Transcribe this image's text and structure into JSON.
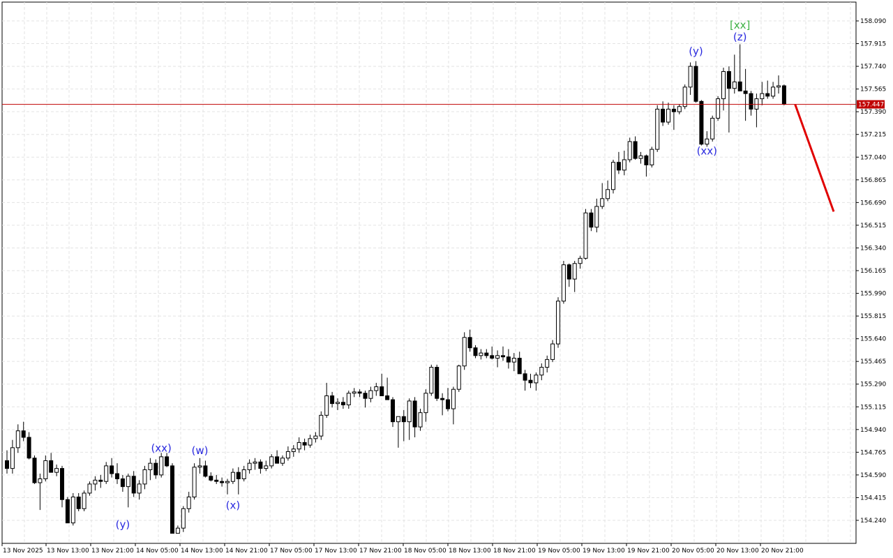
{
  "chart_data": {
    "type": "candlestick",
    "title": "",
    "grid": true,
    "ylim": [
      154.14,
      158.14
    ],
    "y_ticks": [
      "158.090",
      "157.915",
      "157.740",
      "157.565",
      "157.390",
      "157.215",
      "157.040",
      "156.865",
      "156.690",
      "156.515",
      "156.340",
      "156.165",
      "155.990",
      "155.815",
      "155.640",
      "155.465",
      "155.290",
      "155.115",
      "154.940",
      "154.765",
      "154.590",
      "154.415",
      "154.240"
    ],
    "x_ticks": [
      "13 Nov 2025",
      "13 Nov 13:00",
      "13 Nov 21:00",
      "14 Nov 05:00",
      "14 Nov 13:00",
      "14 Nov 21:00",
      "17 Nov 05:00",
      "17 Nov 13:00",
      "17 Nov 21:00",
      "18 Nov 05:00",
      "18 Nov 13:00",
      "18 Nov 21:00",
      "19 Nov 05:00",
      "19 Nov 13:00",
      "19 Nov 21:00",
      "20 Nov 05:00",
      "20 Nov 13:00",
      "20 Nov 21:00"
    ],
    "current_price": "157.447",
    "colors": {
      "bull_fill": "#ffffff",
      "bear_fill": "#000000",
      "price_line": "#c00000",
      "forecast": "#e00000",
      "wave_label": "#2a2adf",
      "major_label": "#3cb043",
      "grid": "#e3e3e3"
    },
    "candles": [
      [
        154.7,
        154.78,
        154.6,
        154.64
      ],
      [
        154.64,
        154.86,
        154.6,
        154.8
      ],
      [
        154.8,
        154.98,
        154.76,
        154.93
      ],
      [
        154.93,
        155.0,
        154.85,
        154.88
      ],
      [
        154.88,
        154.92,
        154.71,
        154.72
      ],
      [
        154.72,
        154.74,
        154.52,
        154.53
      ],
      [
        154.53,
        154.6,
        154.32,
        154.56
      ],
      [
        154.56,
        154.74,
        154.54,
        154.7
      ],
      [
        154.7,
        154.76,
        154.65,
        154.61
      ],
      [
        154.61,
        154.67,
        154.58,
        154.64
      ],
      [
        154.64,
        154.66,
        154.34,
        154.4
      ],
      [
        154.4,
        154.42,
        154.22,
        154.22
      ],
      [
        154.22,
        154.45,
        154.2,
        154.42
      ],
      [
        154.42,
        154.45,
        154.31,
        154.33
      ],
      [
        154.33,
        154.47,
        154.31,
        154.45
      ],
      [
        154.45,
        154.54,
        154.43,
        154.52
      ],
      [
        154.52,
        154.58,
        154.47,
        154.55
      ],
      [
        154.55,
        154.59,
        154.49,
        154.54
      ],
      [
        154.54,
        154.69,
        154.52,
        154.66
      ],
      [
        154.66,
        154.72,
        154.57,
        154.6
      ],
      [
        154.6,
        154.68,
        154.52,
        154.56
      ],
      [
        154.56,
        154.59,
        154.46,
        154.5
      ],
      [
        154.5,
        154.6,
        154.34,
        154.58
      ],
      [
        154.58,
        154.62,
        154.42,
        154.45
      ],
      [
        154.45,
        154.55,
        154.4,
        154.52
      ],
      [
        154.52,
        154.66,
        154.48,
        154.63
      ],
      [
        154.63,
        154.72,
        154.55,
        154.68
      ],
      [
        154.68,
        154.71,
        154.56,
        154.59
      ],
      [
        154.59,
        154.76,
        154.57,
        154.73
      ],
      [
        154.73,
        154.76,
        154.65,
        154.66
      ],
      [
        154.66,
        154.68,
        154.14,
        154.14
      ],
      [
        154.14,
        154.2,
        154.14,
        154.18
      ],
      [
        154.18,
        154.35,
        154.15,
        154.33
      ],
      [
        154.33,
        154.46,
        154.3,
        154.42
      ],
      [
        154.42,
        154.68,
        154.4,
        154.65
      ],
      [
        154.65,
        154.72,
        154.6,
        154.66
      ],
      [
        154.66,
        154.7,
        154.57,
        154.58
      ],
      [
        154.58,
        154.61,
        154.54,
        154.55
      ],
      [
        154.55,
        154.59,
        154.52,
        154.54
      ],
      [
        154.54,
        154.57,
        154.5,
        154.53
      ],
      [
        154.53,
        154.56,
        154.44,
        154.54
      ],
      [
        154.54,
        154.64,
        154.52,
        154.61
      ],
      [
        154.61,
        154.65,
        154.44,
        154.56
      ],
      [
        154.56,
        154.66,
        154.54,
        154.63
      ],
      [
        154.63,
        154.71,
        154.6,
        154.68
      ],
      [
        154.68,
        154.72,
        154.63,
        154.69
      ],
      [
        154.69,
        154.71,
        154.6,
        154.64
      ],
      [
        154.64,
        154.7,
        154.62,
        154.66
      ],
      [
        154.66,
        154.75,
        154.64,
        154.73
      ],
      [
        154.73,
        154.78,
        154.7,
        154.68
      ],
      [
        154.68,
        154.74,
        154.66,
        154.72
      ],
      [
        154.72,
        154.81,
        154.7,
        154.77
      ],
      [
        154.77,
        154.82,
        154.73,
        154.79
      ],
      [
        154.79,
        154.88,
        154.76,
        154.84
      ],
      [
        154.84,
        154.87,
        154.78,
        154.82
      ],
      [
        154.82,
        154.9,
        154.8,
        154.87
      ],
      [
        154.87,
        154.92,
        154.84,
        154.89
      ],
      [
        154.89,
        155.08,
        154.86,
        155.05
      ],
      [
        155.05,
        155.3,
        155.03,
        155.2
      ],
      [
        155.2,
        155.23,
        155.11,
        155.14
      ],
      [
        155.14,
        155.18,
        155.09,
        155.15
      ],
      [
        155.15,
        155.19,
        155.1,
        155.13
      ],
      [
        155.13,
        155.24,
        155.1,
        155.22
      ],
      [
        155.22,
        155.26,
        155.19,
        155.23
      ],
      [
        155.23,
        155.25,
        155.19,
        155.22
      ],
      [
        155.22,
        155.24,
        155.11,
        155.18
      ],
      [
        155.18,
        155.27,
        155.15,
        155.24
      ],
      [
        155.24,
        155.3,
        155.2,
        155.27
      ],
      [
        155.27,
        155.37,
        155.22,
        155.2
      ],
      [
        155.2,
        155.34,
        155.17,
        155.17
      ],
      [
        155.17,
        155.19,
        154.96,
        155.0
      ],
      [
        155.0,
        155.02,
        154.8,
        155.04
      ],
      [
        155.04,
        155.09,
        154.85,
        155.0
      ],
      [
        155.0,
        155.18,
        154.86,
        155.16
      ],
      [
        155.16,
        155.19,
        154.88,
        154.96
      ],
      [
        154.96,
        155.1,
        154.93,
        155.07
      ],
      [
        155.07,
        155.25,
        155.0,
        155.22
      ],
      [
        155.22,
        155.44,
        155.2,
        155.42
      ],
      [
        155.42,
        155.44,
        155.16,
        155.18
      ],
      [
        155.18,
        155.22,
        155.05,
        155.17
      ],
      [
        155.17,
        155.26,
        155.08,
        155.1
      ],
      [
        155.1,
        155.27,
        154.98,
        155.25
      ],
      [
        155.25,
        155.44,
        155.23,
        155.43
      ],
      [
        155.43,
        155.69,
        155.4,
        155.65
      ],
      [
        155.65,
        155.71,
        155.54,
        155.57
      ],
      [
        155.57,
        155.59,
        155.49,
        155.51
      ],
      [
        155.51,
        155.56,
        155.48,
        155.53
      ],
      [
        155.53,
        155.56,
        155.49,
        155.51
      ],
      [
        155.51,
        155.58,
        155.48,
        155.49
      ],
      [
        155.49,
        155.55,
        155.42,
        155.51
      ],
      [
        155.51,
        155.58,
        155.47,
        155.5
      ],
      [
        155.5,
        155.56,
        155.41,
        155.46
      ],
      [
        155.46,
        155.53,
        155.39,
        155.49
      ],
      [
        155.49,
        155.54,
        155.37,
        155.37
      ],
      [
        155.37,
        155.4,
        155.24,
        155.32
      ],
      [
        155.32,
        155.37,
        155.26,
        155.3
      ],
      [
        155.3,
        155.38,
        155.24,
        155.36
      ],
      [
        155.36,
        155.45,
        155.32,
        155.42
      ],
      [
        155.42,
        155.51,
        155.38,
        155.48
      ],
      [
        155.48,
        155.63,
        155.46,
        155.6
      ],
      [
        155.6,
        155.96,
        155.57,
        155.93
      ],
      [
        155.93,
        156.24,
        155.91,
        156.21
      ],
      [
        156.21,
        156.22,
        156.04,
        156.1
      ],
      [
        156.1,
        156.24,
        156.0,
        156.22
      ],
      [
        156.22,
        156.28,
        156.18,
        156.26
      ],
      [
        156.26,
        156.64,
        156.25,
        156.61
      ],
      [
        156.61,
        156.64,
        156.47,
        156.5
      ],
      [
        156.5,
        156.72,
        156.46,
        156.66
      ],
      [
        156.66,
        156.84,
        156.64,
        156.72
      ],
      [
        156.72,
        156.86,
        156.7,
        156.79
      ],
      [
        156.79,
        157.02,
        156.76,
        157.0
      ],
      [
        157.0,
        157.08,
        156.91,
        156.94
      ],
      [
        156.94,
        157.09,
        156.9,
        157.02
      ],
      [
        157.02,
        157.19,
        157.0,
        157.16
      ],
      [
        157.16,
        157.2,
        157.02,
        157.03
      ],
      [
        157.03,
        157.08,
        156.99,
        157.05
      ],
      [
        157.05,
        157.06,
        156.89,
        156.98
      ],
      [
        156.98,
        157.12,
        156.96,
        157.1
      ],
      [
        157.1,
        157.44,
        157.08,
        157.41
      ],
      [
        157.41,
        157.47,
        157.28,
        157.31
      ],
      [
        157.31,
        157.46,
        157.29,
        157.41
      ],
      [
        157.41,
        157.44,
        157.25,
        157.39
      ],
      [
        157.39,
        157.45,
        157.37,
        157.43
      ],
      [
        157.43,
        157.6,
        157.41,
        157.58
      ],
      [
        157.58,
        157.77,
        157.52,
        157.74
      ],
      [
        157.74,
        157.78,
        157.46,
        157.47
      ],
      [
        157.47,
        157.48,
        157.13,
        157.14
      ],
      [
        157.14,
        157.24,
        157.12,
        157.18
      ],
      [
        157.18,
        157.36,
        157.16,
        157.34
      ],
      [
        157.34,
        157.51,
        157.32,
        157.49
      ],
      [
        157.49,
        157.73,
        157.4,
        157.7
      ],
      [
        157.7,
        157.74,
        157.23,
        157.57
      ],
      [
        157.57,
        157.83,
        157.53,
        157.62
      ],
      [
        157.62,
        157.91,
        157.55,
        157.55
      ],
      [
        157.55,
        157.72,
        157.32,
        157.53
      ],
      [
        157.53,
        157.55,
        157.36,
        157.41
      ],
      [
        157.41,
        157.53,
        157.27,
        157.49
      ],
      [
        157.49,
        157.62,
        157.44,
        157.53
      ],
      [
        157.53,
        157.63,
        157.49,
        157.51
      ],
      [
        157.51,
        157.62,
        157.49,
        157.58
      ],
      [
        157.58,
        157.67,
        157.53,
        157.59
      ],
      [
        157.59,
        157.6,
        157.44,
        157.45
      ]
    ],
    "wave_labels": [
      {
        "text": "(y)",
        "x": 21,
        "y": 154.18,
        "color": "wave_label"
      },
      {
        "text": "(xx)",
        "x": 28,
        "y": 154.77,
        "color": "wave_label"
      },
      {
        "text": "(w)",
        "x": 35,
        "y": 154.75,
        "color": "wave_label"
      },
      {
        "text": "(x)",
        "x": 41,
        "y": 154.33,
        "color": "wave_label"
      },
      {
        "text": "(y)",
        "x": 125,
        "y": 157.83,
        "color": "wave_label"
      },
      {
        "text": "(xx)",
        "x": 127,
        "y": 157.06,
        "color": "wave_label"
      },
      {
        "text": "(z)",
        "x": 133,
        "y": 157.94,
        "color": "wave_label"
      },
      {
        "text": "[xx]",
        "x": 133,
        "y": 158.03,
        "color": "major_label"
      }
    ],
    "forecast": {
      "from": [
        143,
        157.447
      ],
      "to": [
        150,
        156.62
      ]
    }
  }
}
